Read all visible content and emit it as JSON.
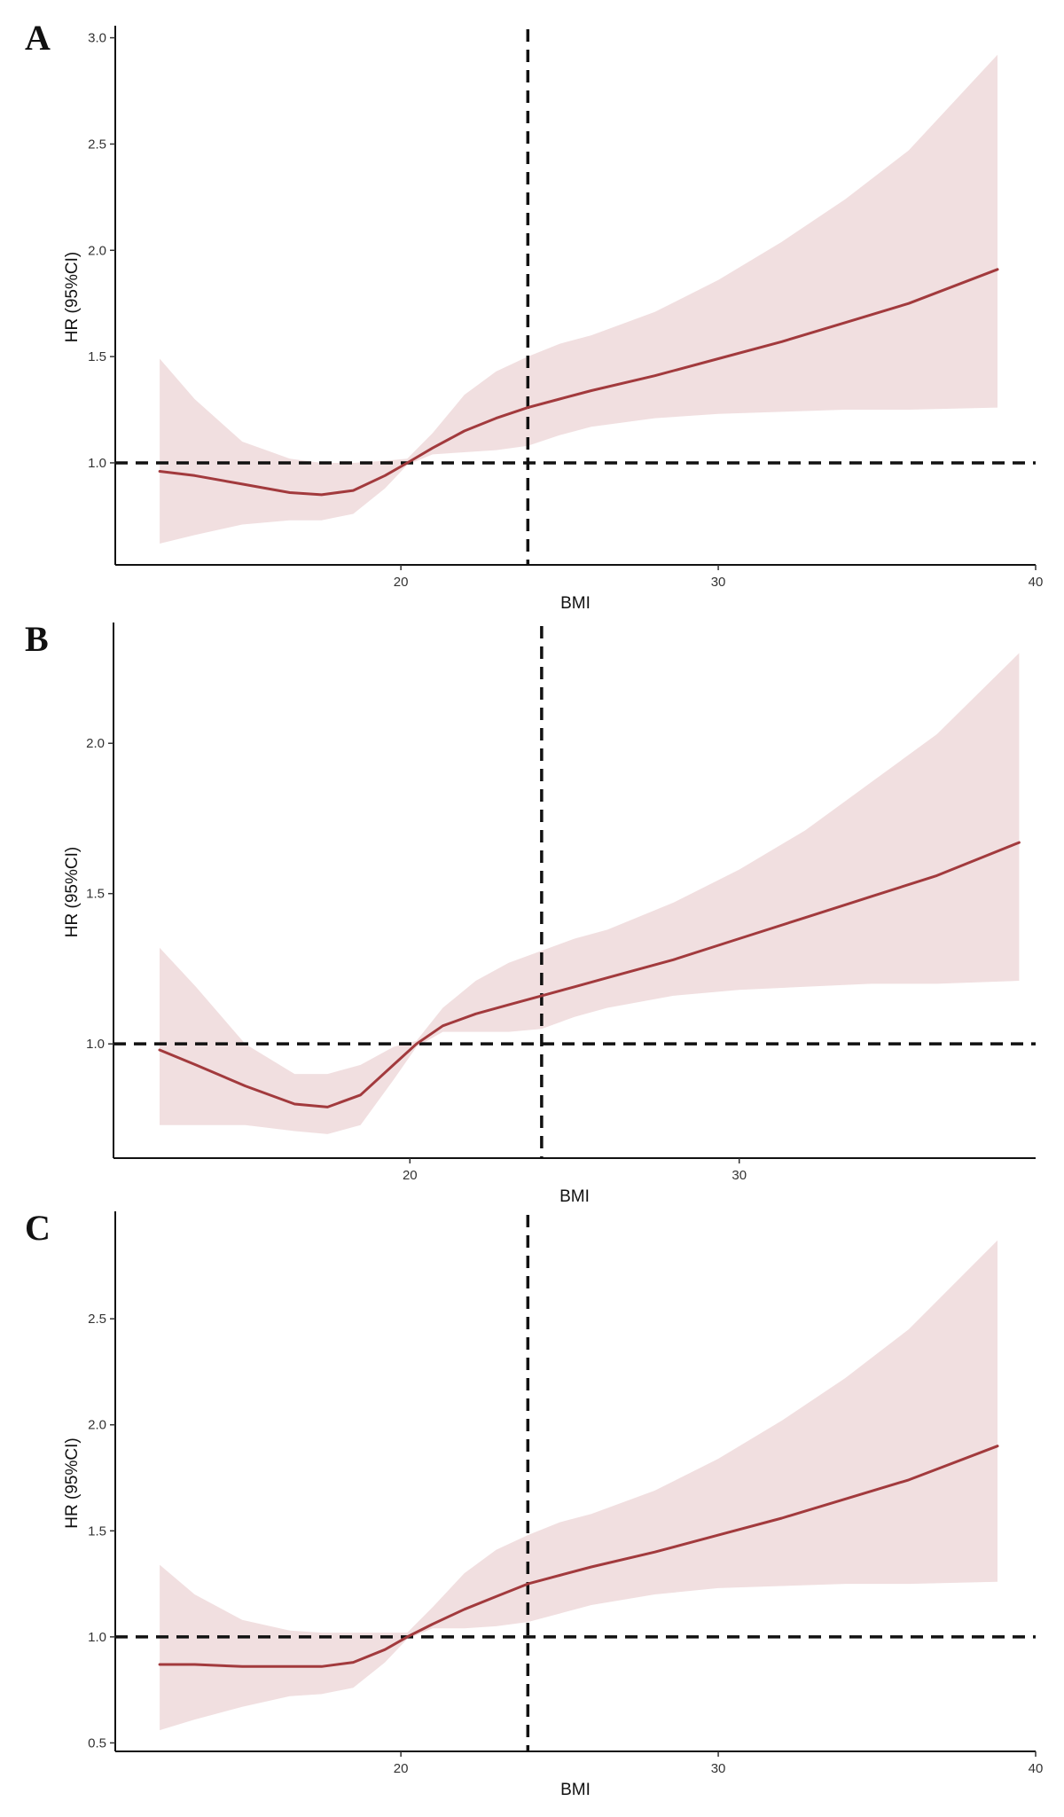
{
  "colors": {
    "line": "#a23a3d",
    "ribbon": "#f1dfe0",
    "reference": "#111111"
  },
  "chart_data": [
    {
      "type": "line",
      "panel_label": "A",
      "xlabel": "BMI",
      "ylabel": "HR (95%CI)",
      "xlim": [
        11,
        40
      ],
      "ylim": [
        0.52,
        3.04
      ],
      "xticks": [
        20,
        30,
        40
      ],
      "yticks": [
        1.0,
        1.5,
        2.0,
        2.5,
        3.0
      ],
      "reference_hr": 1.0,
      "reference_bmi": 24,
      "grid": false,
      "legend": "none",
      "series": [
        {
          "x": [
            12.4,
            13.5,
            15,
            16.5,
            17.5,
            18.5,
            19.5,
            20.2,
            21,
            22,
            23,
            24,
            25,
            26,
            28,
            30,
            32,
            34,
            36,
            38.8
          ],
          "y": [
            0.96,
            0.94,
            0.9,
            0.86,
            0.85,
            0.87,
            0.94,
            1.0,
            1.07,
            1.15,
            1.21,
            1.26,
            1.3,
            1.34,
            1.41,
            1.49,
            1.57,
            1.66,
            1.75,
            1.91
          ],
          "lower": [
            0.62,
            0.66,
            0.71,
            0.73,
            0.73,
            0.76,
            0.88,
            0.99,
            1.04,
            1.05,
            1.06,
            1.08,
            1.13,
            1.17,
            1.21,
            1.23,
            1.24,
            1.25,
            1.25,
            1.26
          ],
          "upper": [
            1.49,
            1.3,
            1.1,
            1.02,
            1.0,
            1.0,
            1.01,
            1.02,
            1.14,
            1.32,
            1.43,
            1.5,
            1.56,
            1.6,
            1.71,
            1.86,
            2.04,
            2.24,
            2.47,
            2.92
          ]
        }
      ]
    },
    {
      "type": "line",
      "panel_label": "B",
      "xlabel": "BMI",
      "ylabel": "HR (95%CI)",
      "xlim": [
        11,
        39
      ],
      "ylim": [
        0.62,
        2.39
      ],
      "xticks": [
        20,
        30
      ],
      "yticks": [
        1.0,
        1.5,
        2.0
      ],
      "reference_hr": 1.0,
      "reference_bmi": 24,
      "grid": false,
      "legend": "none",
      "series": [
        {
          "x": [
            12.4,
            13.5,
            15,
            16.5,
            17.5,
            18.5,
            19.5,
            20.2,
            21,
            22,
            23,
            24,
            25,
            26,
            28,
            30,
            32,
            34,
            36,
            38.5
          ],
          "y": [
            0.98,
            0.93,
            0.86,
            0.8,
            0.79,
            0.83,
            0.93,
            1.0,
            1.06,
            1.1,
            1.13,
            1.16,
            1.19,
            1.22,
            1.28,
            1.35,
            1.42,
            1.49,
            1.56,
            1.67
          ],
          "lower": [
            0.73,
            0.73,
            0.73,
            0.71,
            0.7,
            0.73,
            0.88,
            0.99,
            1.04,
            1.04,
            1.04,
            1.05,
            1.09,
            1.12,
            1.16,
            1.18,
            1.19,
            1.2,
            1.2,
            1.21
          ],
          "upper": [
            1.32,
            1.19,
            1.0,
            0.9,
            0.9,
            0.93,
            0.99,
            1.01,
            1.12,
            1.21,
            1.27,
            1.31,
            1.35,
            1.38,
            1.47,
            1.58,
            1.71,
            1.87,
            2.03,
            2.3
          ]
        }
      ]
    },
    {
      "type": "line",
      "panel_label": "C",
      "xlabel": "BMI",
      "ylabel": "HR (95%CI)",
      "xlim": [
        11,
        40
      ],
      "ylim": [
        0.46,
        2.99
      ],
      "xticks": [
        20,
        30,
        40
      ],
      "yticks": [
        0.5,
        1.0,
        1.5,
        2.0,
        2.5
      ],
      "reference_hr": 1.0,
      "reference_bmi": 24,
      "grid": false,
      "legend": "none",
      "series": [
        {
          "x": [
            12.4,
            13.5,
            15,
            16.5,
            17.5,
            18.5,
            19.5,
            20.2,
            21,
            22,
            23,
            24,
            25,
            26,
            28,
            30,
            32,
            34,
            36,
            38.8
          ],
          "y": [
            0.87,
            0.87,
            0.86,
            0.86,
            0.86,
            0.88,
            0.94,
            1.0,
            1.06,
            1.13,
            1.19,
            1.25,
            1.29,
            1.33,
            1.4,
            1.48,
            1.56,
            1.65,
            1.74,
            1.9
          ],
          "lower": [
            0.56,
            0.61,
            0.67,
            0.72,
            0.73,
            0.76,
            0.88,
            0.99,
            1.04,
            1.04,
            1.05,
            1.07,
            1.11,
            1.15,
            1.2,
            1.23,
            1.24,
            1.25,
            1.25,
            1.26
          ],
          "upper": [
            1.34,
            1.2,
            1.08,
            1.03,
            1.02,
            1.02,
            1.02,
            1.02,
            1.14,
            1.3,
            1.41,
            1.48,
            1.54,
            1.58,
            1.69,
            1.84,
            2.02,
            2.22,
            2.45,
            2.87
          ]
        }
      ]
    }
  ]
}
